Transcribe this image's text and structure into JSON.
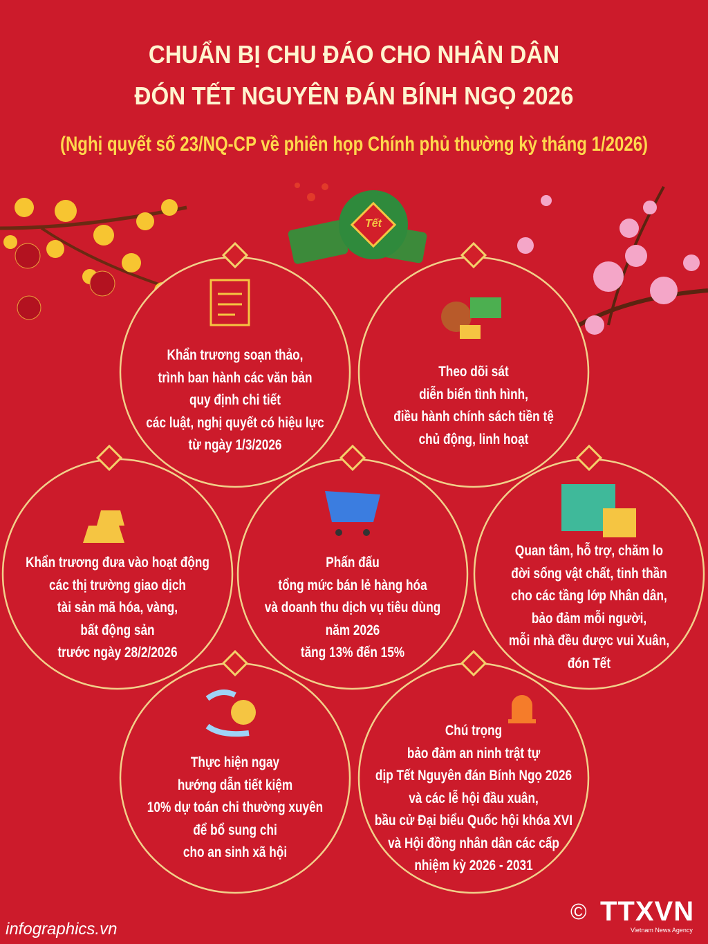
{
  "header": {
    "title_lines": [
      "CHUẨN BỊ CHU ĐÁO CHO NHÂN DÂN",
      "ĐÓN TẾT NGUYÊN ĐÁN BÍNH NGỌ 2026"
    ],
    "subtitle": "(Nghị quyết số 23/NQ-CP về phiên họp Chính phủ thường kỳ tháng 1/2026)"
  },
  "badge": "Tết",
  "items": [
    {
      "lines": [
        "Khẩn trương soạn thảo,",
        "trình ban hành các văn bản",
        "quy định chi tiết",
        "các luật, nghị quyết có hiệu lực",
        "từ ngày 1/3/2026"
      ]
    },
    {
      "lines": [
        "Theo dõi sát",
        "diễn biến tình hình,",
        "điều hành chính sách tiền tệ",
        "chủ động, linh hoạt"
      ]
    },
    {
      "lines": [
        "Khẩn trương đưa vào hoạt động",
        "các thị trường giao dịch",
        "tài sản mã hóa, vàng,",
        "bất động sản",
        "trước ngày 28/2/2026"
      ]
    },
    {
      "lines": [
        "Phấn đấu",
        "tổng mức bán lẻ hàng hóa",
        "và doanh thu dịch vụ tiêu dùng",
        "năm 2026",
        "tăng 13% đến 15%"
      ]
    },
    {
      "lines": [
        "Quan tâm, hỗ trợ, chăm lo",
        "đời sống vật chất, tinh thần",
        "cho các tầng lớp Nhân dân,",
        "bảo đảm mỗi người,",
        "mỗi nhà đều được vui Xuân,",
        "đón Tết"
      ]
    },
    {
      "lines": [
        "Thực hiện ngay",
        "hướng dẫn tiết kiệm",
        "10% dự toán chi thường xuyên",
        "để bổ sung chi",
        "cho an sinh xã hội"
      ]
    },
    {
      "lines": [
        "Chú trọng",
        "bảo đảm an ninh trật tự",
        "dịp Tết Nguyên đán Bính Ngọ 2026",
        "và các lễ hội đầu xuân,",
        "bầu cử Đại biểu Quốc hội khóa XVI",
        "và Hội đồng nhân dân các cấp",
        "nhiệm kỳ 2026 - 2031"
      ]
    }
  ],
  "footer": {
    "site": "infographics.vn",
    "copyright": "©",
    "logo": "TTXVN",
    "logo_sub": "Vietnam News Agency"
  }
}
